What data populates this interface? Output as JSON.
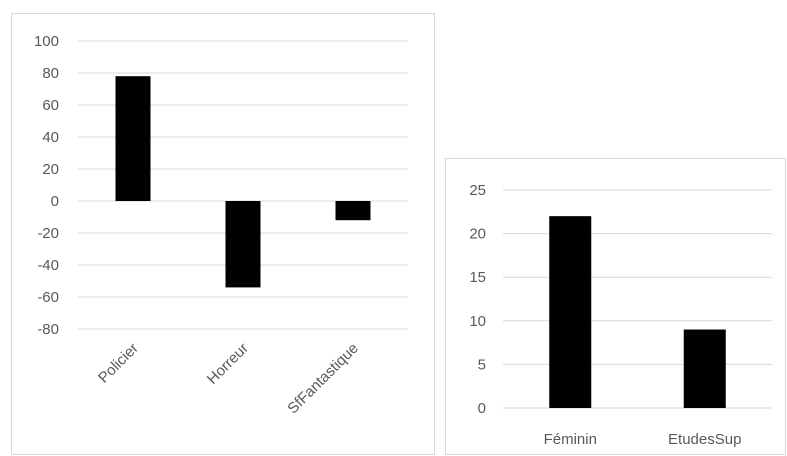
{
  "chart_data": [
    {
      "type": "bar",
      "title": "",
      "xlabel": "",
      "ylabel": "",
      "categories": [
        "Policier",
        "Horreur",
        "SfFantastique"
      ],
      "values": [
        78,
        -54,
        -12
      ],
      "ylim": [
        -80,
        100
      ],
      "yticks": [
        100,
        80,
        60,
        40,
        20,
        0,
        -20,
        -40,
        -60,
        -80
      ],
      "grid": true,
      "bar_color": "#000000",
      "grid_color": "#d9d9d9",
      "category_label_rotation": "rotated -45°"
    },
    {
      "type": "bar",
      "title": "",
      "xlabel": "",
      "ylabel": "",
      "categories": [
        "Féminin",
        "EtudesSup"
      ],
      "values": [
        22,
        9
      ],
      "ylim": [
        0,
        25
      ],
      "yticks": [
        25,
        20,
        15,
        10,
        5,
        0
      ],
      "grid": true,
      "bar_color": "#000000",
      "grid_color": "#d9d9d9",
      "category_label_rotation": "horizontal"
    }
  ]
}
